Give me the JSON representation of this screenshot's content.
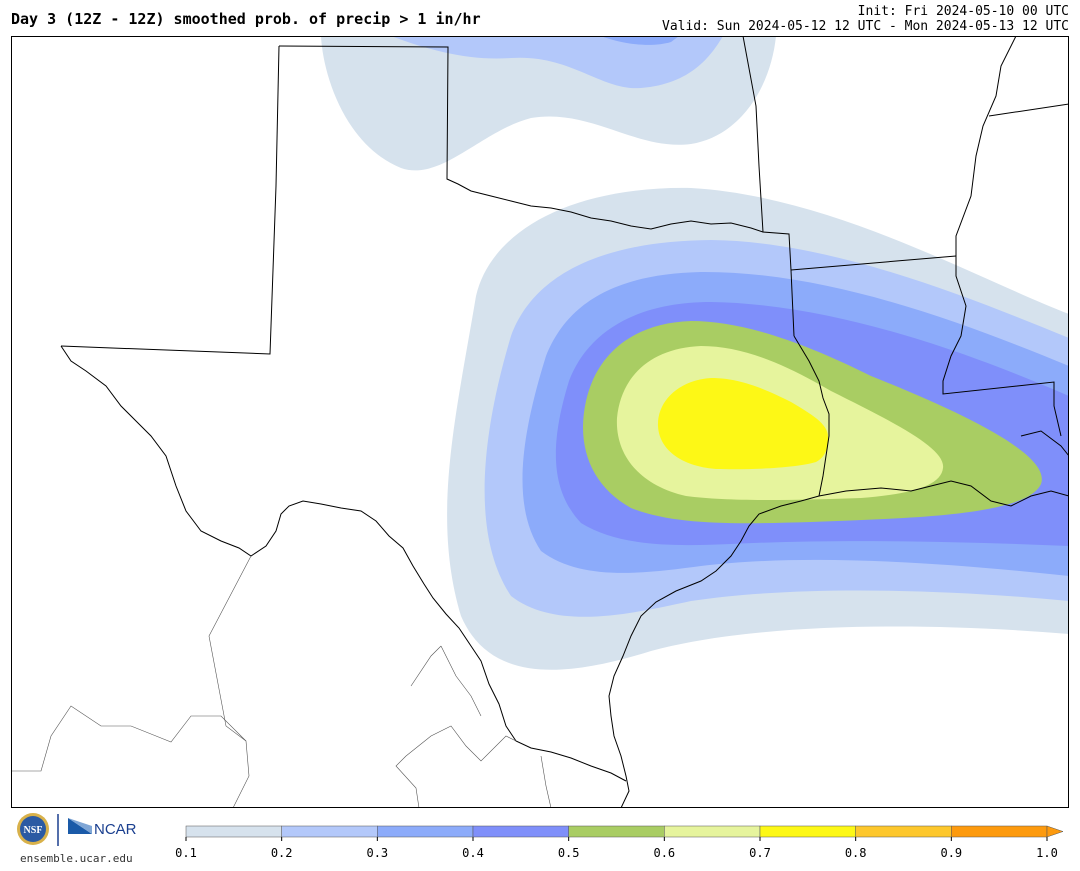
{
  "header": {
    "title": "Day 3 (12Z - 12Z) smoothed prob. of precip > 1 in/hr",
    "init": "Init: Fri 2024-05-10 00 UTC",
    "valid": "Valid: Sun 2024-05-12 12 UTC - Mon 2024-05-13 12 UTC"
  },
  "footer": {
    "nsf_text": "NSF",
    "ncar_text": "NCAR",
    "site": "ensemble.ucar.edu"
  },
  "colorbar": {
    "colors": [
      "#d6e2ed",
      "#b3c8fa",
      "#8cabfa",
      "#7f8ffa",
      "#a9cd63",
      "#e6f49d",
      "#fdf816",
      "#fdc72c",
      "#fd9a0e"
    ],
    "ticks": [
      "0.1",
      "0.2",
      "0.3",
      "0.4",
      "0.5",
      "0.6",
      "0.7",
      "0.8",
      "0.9",
      "1.0"
    ],
    "extend_arrow_color": "#fd9a0e"
  },
  "map": {
    "region": "Texas, Oklahoma, Louisiana and northern Mexico",
    "probability_levels": [
      0.1,
      0.2,
      0.3,
      0.4,
      0.5,
      0.6,
      0.7
    ],
    "max_probability_area": "East Texas near the Louisiana border"
  }
}
